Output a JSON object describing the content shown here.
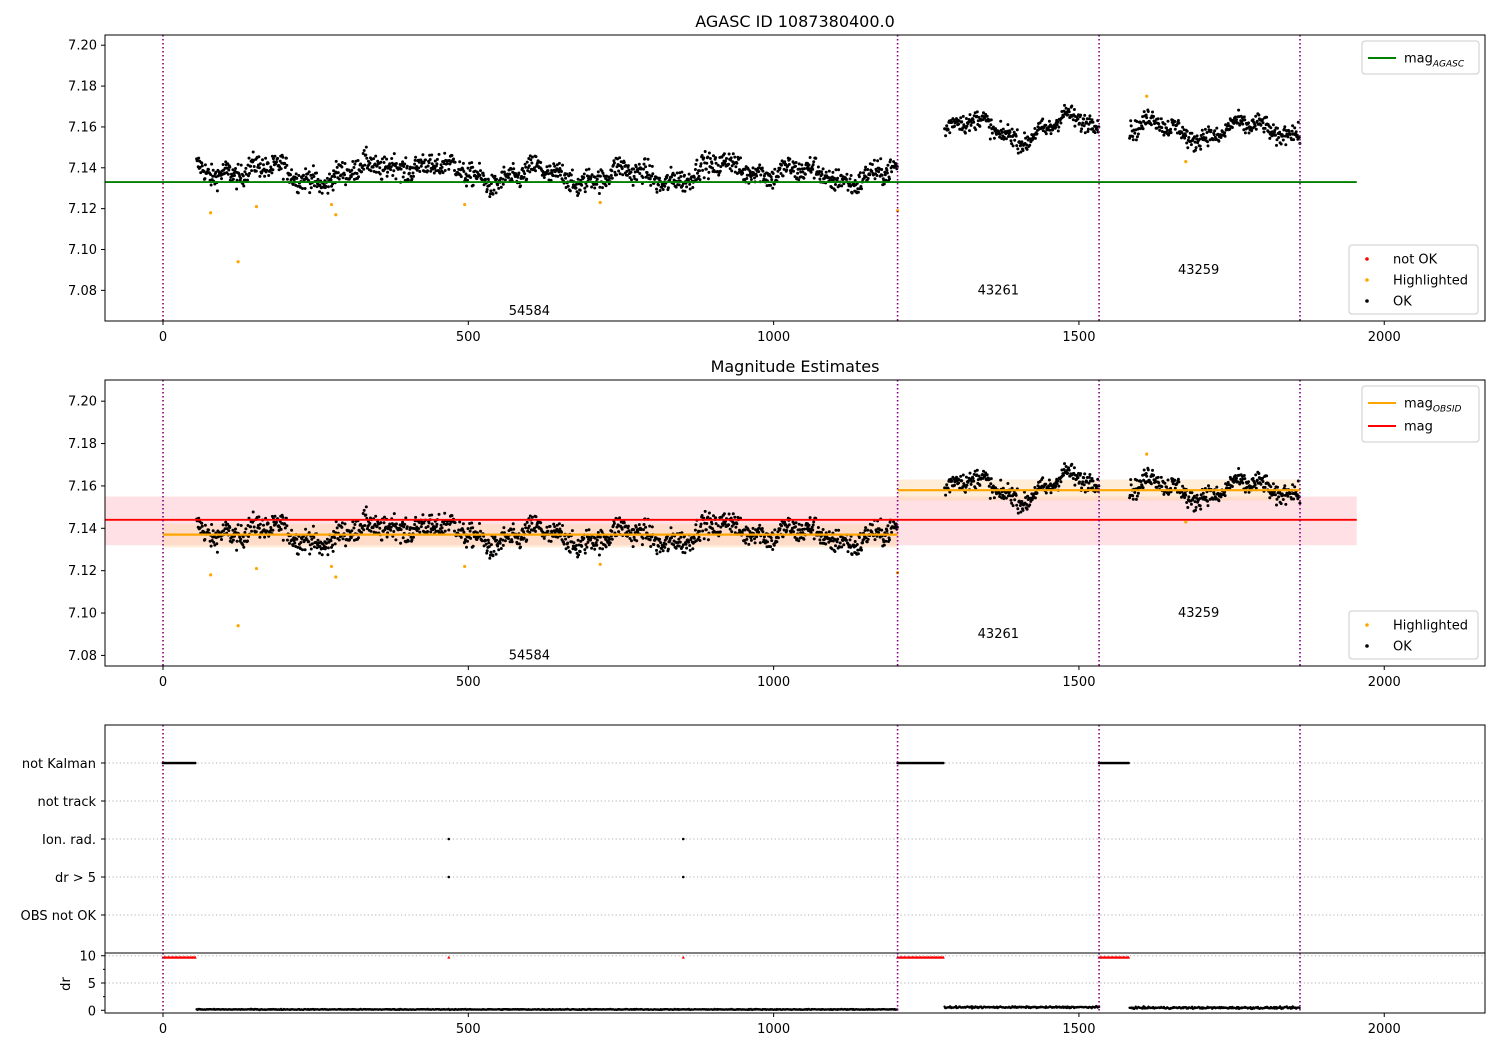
{
  "chart_data": [
    {
      "type": "scatter",
      "title": "AGASC ID 1087380400.0",
      "xlim": [
        -95,
        2165
      ],
      "ylim": [
        7.065,
        7.205
      ],
      "xticks": [
        0,
        500,
        1000,
        1500,
        2000
      ],
      "yticks": [
        7.08,
        7.1,
        7.12,
        7.14,
        7.16,
        7.18,
        7.2
      ],
      "ytick_format": 2,
      "obsid_boundaries": [
        0,
        1203,
        1533,
        1862
      ],
      "obsid_labels": [
        {
          "text": "54584",
          "x": 600,
          "y": 7.07
        },
        {
          "text": "43261",
          "x": 1368,
          "y": 7.08
        },
        {
          "text": "43259",
          "x": 1696,
          "y": 7.09
        }
      ],
      "reference_lines": [
        {
          "name": "mag_AGASC",
          "y": 7.133,
          "x_range": [
            -95,
            1955
          ],
          "color": "#008000"
        }
      ],
      "bands": [],
      "segments": [
        {
          "x_range": [
            55,
            1203
          ],
          "y_mean": 7.136,
          "noise": 0.0055,
          "bumps": [
            [
              120,
              0.004
            ],
            [
              400,
              0.007
            ],
            [
              950,
              0.005
            ]
          ]
        },
        {
          "x_range": [
            1280,
            1533
          ],
          "y_mean": 7.158,
          "noise": 0.0045,
          "bumps": [
            [
              1300,
              0.004
            ],
            [
              1380,
              -0.002
            ],
            [
              1500,
              0.004
            ]
          ]
        },
        {
          "x_range": [
            1583,
            1862
          ],
          "y_mean": 7.157,
          "noise": 0.0045,
          "bumps": [
            [
              1600,
              0.003
            ],
            [
              1780,
              0.001
            ],
            [
              1840,
              0.002
            ]
          ]
        }
      ],
      "highlighted_points": [
        [
          78,
          7.118
        ],
        [
          123,
          7.094
        ],
        [
          153,
          7.121
        ],
        [
          276,
          7.122
        ],
        [
          283,
          7.117
        ],
        [
          494,
          7.122
        ],
        [
          716,
          7.123
        ],
        [
          1203,
          7.119
        ],
        [
          1611,
          7.175
        ],
        [
          1675,
          7.143
        ]
      ],
      "legend_lines": [
        {
          "label": "mag",
          "sub": "AGASC",
          "color": "#008000"
        }
      ],
      "legend_points": [
        {
          "label": "not OK",
          "color": "#ff0000"
        },
        {
          "label": "Highlighted",
          "color": "#ffa500"
        },
        {
          "label": "OK",
          "color": "#000000"
        }
      ],
      "series": [
        {
          "name": "not OK",
          "color": "#ff0000",
          "values": []
        },
        {
          "name": "Highlighted",
          "color": "#ffa500"
        },
        {
          "name": "OK",
          "color": "#000000"
        }
      ]
    },
    {
      "type": "scatter",
      "title": "Magnitude Estimates",
      "xlim": [
        -95,
        2165
      ],
      "ylim": [
        7.075,
        7.21
      ],
      "xticks": [
        0,
        500,
        1000,
        1500,
        2000
      ],
      "yticks": [
        7.08,
        7.1,
        7.12,
        7.14,
        7.16,
        7.18,
        7.2
      ],
      "ytick_format": 2,
      "obsid_boundaries": [
        0,
        1203,
        1533,
        1862
      ],
      "obsid_labels": [
        {
          "text": "54584",
          "x": 600,
          "y": 7.08
        },
        {
          "text": "43261",
          "x": 1368,
          "y": 7.09
        },
        {
          "text": "43259",
          "x": 1696,
          "y": 7.1
        }
      ],
      "bands": [
        {
          "x_range": [
            -95,
            1955
          ],
          "y_range": [
            7.132,
            7.155
          ],
          "color": "#ffb6c1",
          "opacity": 0.42
        },
        {
          "x_range": [
            0,
            1203
          ],
          "y_range": [
            7.131,
            7.142
          ],
          "color": "#ffd8a8",
          "opacity": 0.45
        },
        {
          "x_range": [
            1203,
            1862
          ],
          "y_range": [
            7.153,
            7.163
          ],
          "color": "#ffd8a8",
          "opacity": 0.45
        }
      ],
      "reference_lines": [
        {
          "name": "mag",
          "y": 7.144,
          "x_range": [
            -95,
            1955
          ],
          "color": "#ff0000"
        },
        {
          "name": "mag_OBSID",
          "y": 7.137,
          "x_range": [
            0,
            1203
          ],
          "color": "#ffa500"
        },
        {
          "name": "mag_OBSID",
          "y": 7.158,
          "x_range": [
            1203,
            1862
          ],
          "color": "#ffa500"
        }
      ],
      "segments": [
        {
          "x_range": [
            55,
            1203
          ],
          "y_mean": 7.136,
          "noise": 0.0055,
          "bumps": [
            [
              120,
              0.004
            ],
            [
              400,
              0.007
            ],
            [
              950,
              0.005
            ]
          ]
        },
        {
          "x_range": [
            1280,
            1533
          ],
          "y_mean": 7.158,
          "noise": 0.0045,
          "bumps": [
            [
              1300,
              0.004
            ],
            [
              1380,
              -0.002
            ],
            [
              1500,
              0.004
            ]
          ]
        },
        {
          "x_range": [
            1583,
            1862
          ],
          "y_mean": 7.157,
          "noise": 0.0045,
          "bumps": [
            [
              1600,
              0.003
            ],
            [
              1780,
              0.001
            ],
            [
              1840,
              0.002
            ]
          ]
        }
      ],
      "highlighted_points": [
        [
          78,
          7.118
        ],
        [
          123,
          7.094
        ],
        [
          153,
          7.121
        ],
        [
          276,
          7.122
        ],
        [
          283,
          7.117
        ],
        [
          494,
          7.122
        ],
        [
          716,
          7.123
        ],
        [
          1203,
          7.119
        ],
        [
          1611,
          7.175
        ],
        [
          1675,
          7.143
        ]
      ],
      "legend_lines": [
        {
          "label": "mag",
          "sub": "OBSID",
          "color": "#ffa500"
        },
        {
          "label": "mag",
          "sub": "",
          "color": "#ff0000"
        }
      ],
      "legend_points": [
        {
          "label": "Highlighted",
          "color": "#ffa500"
        },
        {
          "label": "OK",
          "color": "#000000"
        }
      ],
      "series": [
        {
          "name": "Highlighted",
          "color": "#ffa500"
        },
        {
          "name": "OK",
          "color": "#000000"
        }
      ]
    },
    {
      "type": "scatter",
      "title": "",
      "xlim": [
        -95,
        2165
      ],
      "xticks": [
        0,
        500,
        1000,
        1500,
        2000
      ],
      "obsid_boundaries": [
        0,
        1203,
        1533,
        1862
      ],
      "flag_rows": [
        "not Kalman",
        "not track",
        "Ion. rad.",
        "dr > 5",
        "OBS not OK"
      ],
      "flags": [
        {
          "row": "not Kalman",
          "ranges": [
            [
              0,
              55
            ],
            [
              1203,
              1280
            ],
            [
              1533,
              1583
            ]
          ]
        },
        {
          "row": "Ion. rad.",
          "points": [
            468,
            852
          ]
        },
        {
          "row": "dr > 5",
          "points": [
            468,
            852
          ]
        }
      ],
      "dr_ylim": [
        -0.5,
        10.5
      ],
      "dr_yticks": [
        0,
        5,
        10
      ],
      "dr_ylabel": "dr",
      "dr_high_ranges": [
        [
          0,
          55
        ],
        [
          1203,
          1280
        ],
        [
          1533,
          1583
        ]
      ],
      "dr_high_points": [
        468,
        852
      ],
      "dr_high_value": 9.7,
      "dr_segments": [
        {
          "x_range": [
            55,
            1203
          ],
          "mean": 0.15,
          "noise": 0.08
        },
        {
          "x_range": [
            1280,
            1533
          ],
          "mean": 0.55,
          "noise": 0.15
        },
        {
          "x_range": [
            1583,
            1862
          ],
          "mean": 0.45,
          "noise": 0.18
        }
      ]
    }
  ]
}
